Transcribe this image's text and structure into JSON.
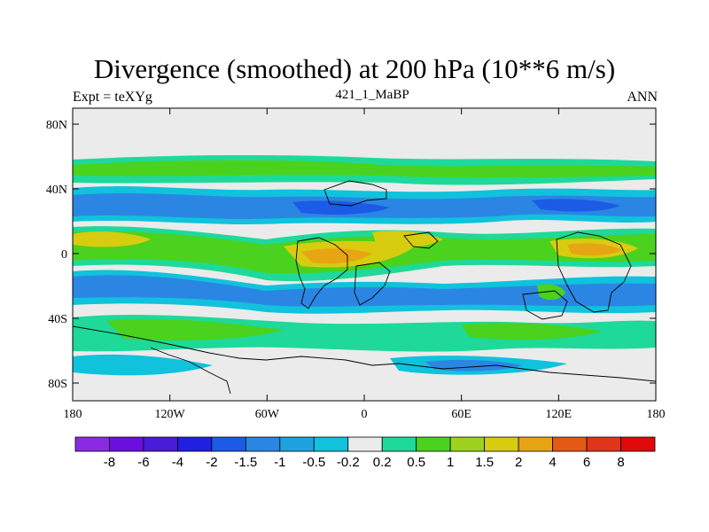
{
  "title": "Divergence (smoothed) at 200 hPa (10**6 m/s)",
  "left_string": "Expt = teXYg",
  "center_string": "421_1_MaBP",
  "right_string": "ANN",
  "y_tick_labels": [
    "80N",
    "40N",
    "0",
    "40S",
    "80S"
  ],
  "x_tick_labels": [
    "180",
    "120W",
    "60W",
    "0",
    "60E",
    "120E",
    "180"
  ],
  "colorbar": {
    "colors": [
      "#8a2be2",
      "#6a0fe0",
      "#4a1bd8",
      "#2020e0",
      "#1b5be6",
      "#2b86e3",
      "#1fa3e0",
      "#10c2dc",
      "#ebebeb",
      "#1ed99a",
      "#4ad21f",
      "#9ed21f",
      "#d7cc10",
      "#e7a514",
      "#e25a14",
      "#e2341a",
      "#e00a0a"
    ],
    "labels": [
      "-8",
      "-6",
      "-4",
      "-2",
      "-1.5",
      "-1",
      "-0.5",
      "-0.2",
      "0.2",
      "0.5",
      "1",
      "1.5",
      "2",
      "4",
      "6",
      "8"
    ]
  },
  "palette": {
    "neutral": "#ebebeb",
    "pos_weak": "#1ed99a",
    "pos_mid": "#4ad21f",
    "pos_strong": "#d7cc10",
    "pos_peak": "#e7a514",
    "neg_weak": "#10c2dc",
    "neg_mid": "#2b86e3",
    "neg_strong": "#1b5be6",
    "coast": "#000000"
  }
}
